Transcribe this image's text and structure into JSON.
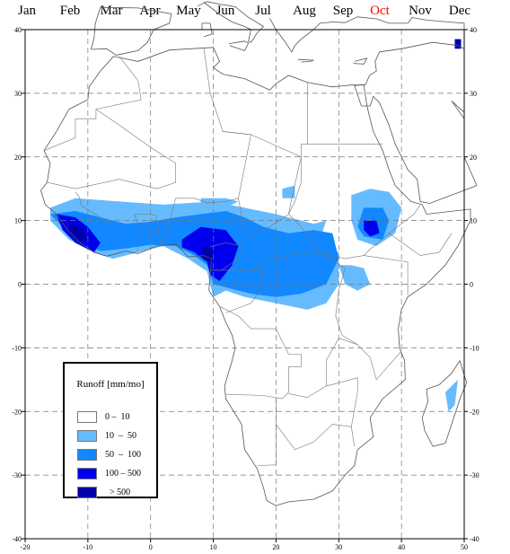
{
  "months": [
    {
      "label": "Jan",
      "active": false
    },
    {
      "label": "Feb",
      "active": false
    },
    {
      "label": "Mar",
      "active": false
    },
    {
      "label": "Apr",
      "active": false
    },
    {
      "label": "May",
      "active": false
    },
    {
      "label": "Jun",
      "active": false
    },
    {
      "label": "Jul",
      "active": false
    },
    {
      "label": "Aug",
      "active": false
    },
    {
      "label": "Sep",
      "active": false
    },
    {
      "label": "Oct",
      "active": true
    },
    {
      "label": "Nov",
      "active": false
    },
    {
      "label": "Dec",
      "active": false
    }
  ],
  "map": {
    "lon_range": [
      -20,
      50
    ],
    "lat_range": [
      -40,
      40
    ],
    "lon_ticks": [
      "-20",
      "-10",
      "0",
      "10",
      "20",
      "30",
      "40",
      "50"
    ],
    "lat_ticks": [
      "40",
      "30",
      "20",
      "10",
      "0",
      "-10",
      "-20",
      "-30",
      "-40"
    ],
    "grid": "dashed"
  },
  "legend": {
    "title": "Runoff [mm/mo]",
    "items": [
      {
        "label": "0 –  10",
        "color": "#ffffff"
      },
      {
        "label": "10  –  50",
        "color": "#66bbff"
      },
      {
        "label": "50  –  100",
        "color": "#1188ff"
      },
      {
        "label": "100 – 500",
        "color": "#0000ee"
      },
      {
        "label": "  > 500",
        "color": "#0000aa"
      }
    ]
  },
  "colors": {
    "light": "#66bbff",
    "medium": "#1188ff",
    "strong": "#0000ee",
    "extreme": "#0000aa",
    "outline": "#555555",
    "active_month": "#ff0000"
  }
}
